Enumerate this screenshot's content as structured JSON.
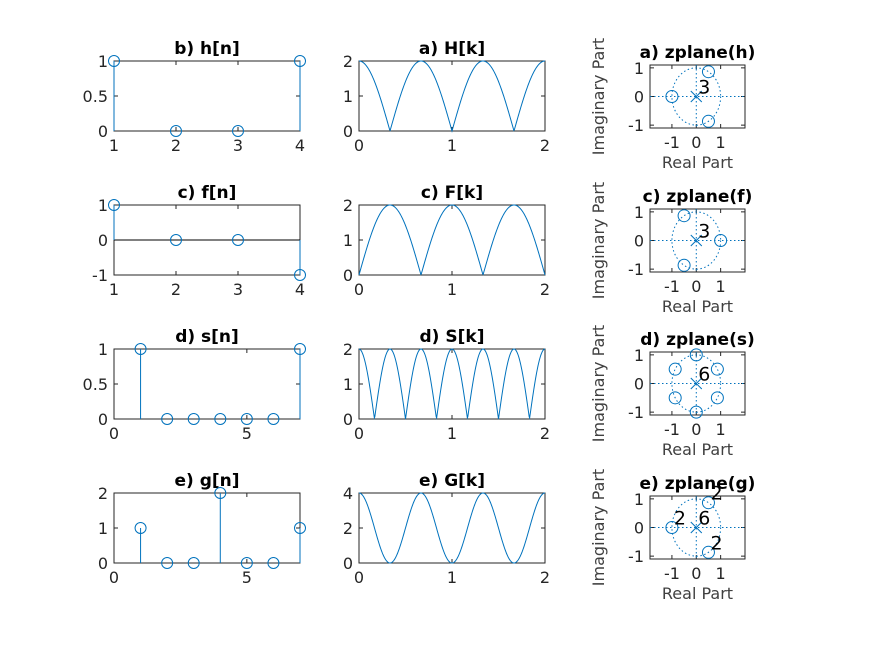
{
  "colors": {
    "series": "#0072bd",
    "axis": "#262626",
    "grid": "#0072bd"
  },
  "chart_data": [
    {
      "id": "h_n",
      "type": "stem",
      "title": "b) h[n]",
      "x": [
        1,
        2,
        3,
        4
      ],
      "values": [
        1,
        0,
        0,
        1
      ],
      "xlim": [
        1,
        4
      ],
      "ylim": [
        0,
        1
      ],
      "xticks": [
        "1",
        "2",
        "3",
        "4"
      ],
      "yticks": [
        "0",
        "0.5",
        "1"
      ]
    },
    {
      "id": "H_k",
      "type": "line",
      "title": "a) H[k]",
      "curve": "abs(2cos(3*pi*x/2))",
      "xlim": [
        0,
        2
      ],
      "ylim": [
        0,
        2
      ],
      "xticks": [
        "0",
        "1",
        "2"
      ],
      "yticks": [
        "0",
        "1",
        "2"
      ]
    },
    {
      "id": "zh",
      "type": "zplane",
      "title": "a) zplane(h)",
      "xlabel": "Real Part",
      "ylabel": "Imaginary Part",
      "zeros": [
        [
          -1,
          0
        ],
        [
          0.5,
          0.866
        ],
        [
          0.5,
          -0.866
        ]
      ],
      "poles": [
        [
          0,
          0
        ]
      ],
      "pole_multiplicity": "3",
      "zero_multiplicity": [],
      "xticks": [
        "-1",
        "0",
        "1"
      ],
      "yticks": [
        "-1",
        "0",
        "1"
      ]
    },
    {
      "id": "f_n",
      "type": "stem",
      "title": "c) f[n]",
      "x": [
        1,
        2,
        3,
        4
      ],
      "values": [
        1,
        0,
        0,
        -1
      ],
      "xlim": [
        1,
        4
      ],
      "ylim": [
        -1,
        1
      ],
      "xticks": [
        "1",
        "2",
        "3",
        "4"
      ],
      "yticks": [
        "-1",
        "0",
        "1"
      ]
    },
    {
      "id": "F_k",
      "type": "line",
      "title": "c) F[k]",
      "curve": "abs(2sin(3*pi*x/2))",
      "xlim": [
        0,
        2
      ],
      "ylim": [
        0,
        2
      ],
      "xticks": [
        "0",
        "1",
        "2"
      ],
      "yticks": [
        "0",
        "1",
        "2"
      ]
    },
    {
      "id": "zf",
      "type": "zplane",
      "title": "c) zplane(f)",
      "xlabel": "Real Part",
      "ylabel": "Imaginary Part",
      "zeros": [
        [
          1,
          0
        ],
        [
          -0.5,
          0.866
        ],
        [
          -0.5,
          -0.866
        ]
      ],
      "poles": [
        [
          0,
          0
        ]
      ],
      "pole_multiplicity": "3",
      "zero_multiplicity": [],
      "xticks": [
        "-1",
        "0",
        "1"
      ],
      "yticks": [
        "-1",
        "0",
        "1"
      ]
    },
    {
      "id": "s_n",
      "type": "stem",
      "title": "d) s[n]",
      "x": [
        1,
        2,
        3,
        4,
        5,
        6,
        7
      ],
      "values": [
        1,
        0,
        0,
        0,
        0,
        0,
        1
      ],
      "xlim": [
        0,
        7
      ],
      "ylim": [
        0,
        1
      ],
      "xticks": [
        "0",
        "5"
      ],
      "xtick_values": [
        0,
        5
      ],
      "yticks": [
        "0",
        "0.5",
        "1"
      ]
    },
    {
      "id": "S_k",
      "type": "line",
      "title": "d) S[k]",
      "curve": "abs(2cos(3*pi*x))",
      "xlim": [
        0,
        2
      ],
      "ylim": [
        0,
        2
      ],
      "xticks": [
        "0",
        "1",
        "2"
      ],
      "yticks": [
        "0",
        "1",
        "2"
      ]
    },
    {
      "id": "zs",
      "type": "zplane",
      "title": "d) zplane(s)",
      "xlabel": "Real Part",
      "ylabel": "Imaginary Part",
      "zeros": [
        [
          0,
          1
        ],
        [
          0.866,
          0.5
        ],
        [
          0.866,
          -0.5
        ],
        [
          0,
          -1
        ],
        [
          -0.866,
          -0.5
        ],
        [
          -0.866,
          0.5
        ]
      ],
      "poles": [
        [
          0,
          0
        ]
      ],
      "pole_multiplicity": "6",
      "zero_multiplicity": [],
      "xticks": [
        "-1",
        "0",
        "1"
      ],
      "yticks": [
        "-1",
        "0",
        "1"
      ]
    },
    {
      "id": "g_n",
      "type": "stem",
      "title": "e) g[n]",
      "x": [
        1,
        2,
        3,
        4,
        5,
        6,
        7
      ],
      "values": [
        1,
        0,
        0,
        2,
        0,
        0,
        1
      ],
      "xlim": [
        0,
        7
      ],
      "ylim": [
        0,
        2
      ],
      "xticks": [
        "0",
        "5"
      ],
      "xtick_values": [
        0,
        5
      ],
      "yticks": [
        "0",
        "1",
        "2"
      ]
    },
    {
      "id": "G_k",
      "type": "line",
      "title": "e) G[k]",
      "curve": "4cos^2(3*pi*x/2)",
      "xlim": [
        0,
        2
      ],
      "ylim": [
        0,
        4
      ],
      "xticks": [
        "0",
        "1",
        "2"
      ],
      "yticks": [
        "0",
        "2",
        "4"
      ]
    },
    {
      "id": "zg",
      "type": "zplane",
      "title": "e) zplane(g)",
      "xlabel": "Real Part",
      "ylabel": "Imaginary Part",
      "zeros": [
        [
          -1,
          0
        ],
        [
          0.5,
          0.866
        ],
        [
          0.5,
          -0.866
        ]
      ],
      "poles": [
        [
          0,
          0
        ]
      ],
      "pole_multiplicity": "6",
      "zero_multiplicity": [
        {
          "at": [
            -1,
            0
          ],
          "label": "2"
        },
        {
          "at": [
            0.5,
            0.866
          ],
          "label": "2"
        },
        {
          "at": [
            0.5,
            -0.866
          ],
          "label": "2"
        }
      ],
      "xticks": [
        "-1",
        "0",
        "1"
      ],
      "yticks": [
        "-1",
        "0",
        "1"
      ]
    }
  ]
}
